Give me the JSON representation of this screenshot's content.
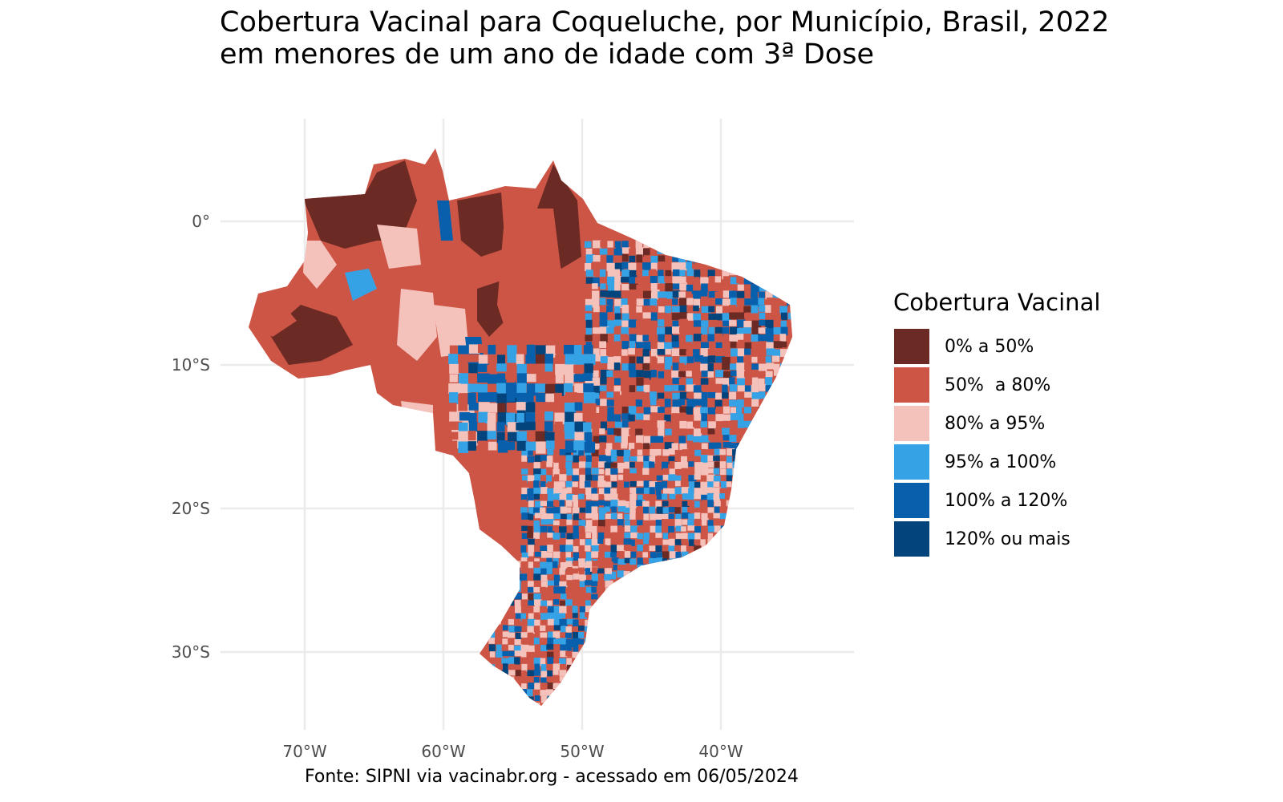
{
  "title_line1": "Cobertura Vacinal para Coqueluche, por Município, Brasil, 2022",
  "title_line2": "em menores de um ano de idade com 3ª Dose",
  "caption": "Fonte: SIPNI via vacinabr.org - acessado em 06/05/2024",
  "map": {
    "x_ticks": [
      {
        "lon": -70,
        "label": "70°W"
      },
      {
        "lon": -60,
        "label": "60°W"
      },
      {
        "lon": -50,
        "label": "50°W"
      },
      {
        "lon": -40,
        "label": "40°W"
      }
    ],
    "y_ticks": [
      {
        "lat": 0,
        "label": "0°"
      },
      {
        "lat": -10,
        "label": "10°S"
      },
      {
        "lat": -20,
        "label": "20°S"
      },
      {
        "lat": -30,
        "label": "30°S"
      }
    ]
  },
  "legend": {
    "title": "Cobertura Vacinal",
    "items": [
      {
        "label": "0% a 50%",
        "color": "#6B2A24"
      },
      {
        "label": "50%  a 80%",
        "color": "#CD5546"
      },
      {
        "label": "80% a 95%",
        "color": "#F4C2BB"
      },
      {
        "label": "95% a 100%",
        "color": "#36A2E6"
      },
      {
        "label": "100% a 120%",
        "color": "#0860AD"
      },
      {
        "label": "120% ou mais",
        "color": "#03447C"
      }
    ]
  }
}
